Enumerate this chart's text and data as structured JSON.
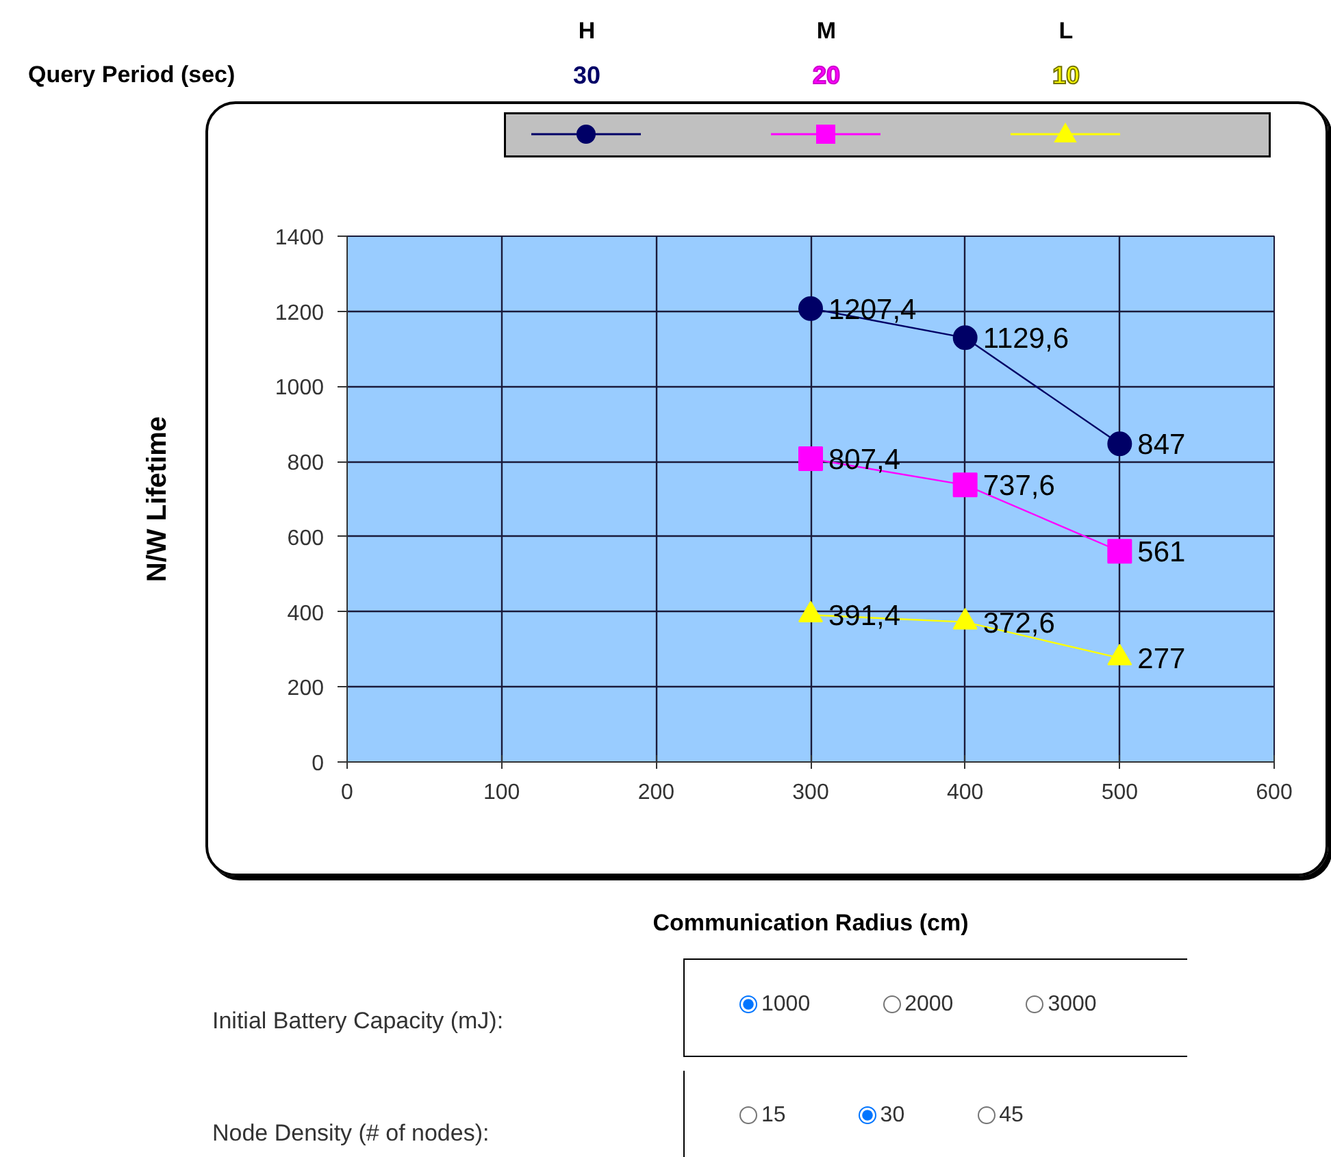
{
  "chart_data": {
    "type": "line",
    "legend_title": "Query Period (sec)",
    "xlabel": "Communication Radius (cm)",
    "ylabel": "N/W Lifetime",
    "x": [
      300,
      400,
      500
    ],
    "xlim": [
      0,
      600
    ],
    "xticks": [
      0,
      100,
      200,
      300,
      400,
      500,
      600
    ],
    "ylim": [
      0,
      1400
    ],
    "yticks": [
      0,
      200,
      400,
      600,
      800,
      1000,
      1200,
      1400
    ],
    "grid": true,
    "legend": "top",
    "line_style": "solid",
    "series": [
      {
        "name": "30",
        "color": "#000066",
        "marker": "circle",
        "values": [
          1207.4,
          1129.6,
          847
        ],
        "value_labels": [
          "1207,4",
          "1129,6",
          "847"
        ]
      },
      {
        "name": "20",
        "color": "#ff00ff",
        "marker": "square",
        "values": [
          807.4,
          737.6,
          561
        ],
        "value_labels": [
          "807,4",
          "737,6",
          "561"
        ]
      },
      {
        "name": "10",
        "color": "#ffff00",
        "marker": "triangle",
        "values": [
          391.4,
          372.6,
          277
        ],
        "value_labels": [
          "391,4",
          "372,6",
          "277"
        ]
      }
    ],
    "annotations": [
      "H",
      "M",
      "L",
      "Initial Battery Capacity (mJ):",
      "1000",
      "2000",
      "3000",
      "Node Density (# of nodes):",
      "15",
      "30",
      "45"
    ]
  }
}
